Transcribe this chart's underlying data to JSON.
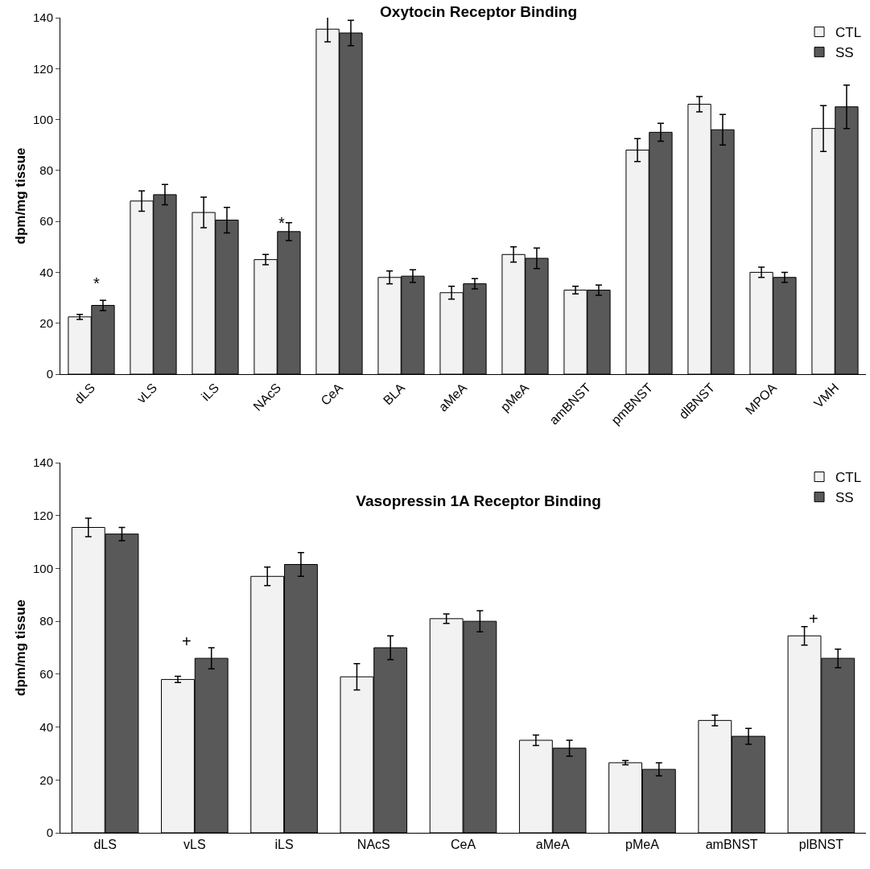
{
  "chart_data": [
    {
      "type": "bar",
      "title": "Oxytocin Receptor Binding",
      "ylabel": "dpm/mg tissue",
      "categories": [
        "dLS",
        "vLS",
        "iLS",
        "NAcS",
        "CeA",
        "BLA",
        "aMeA",
        "pMeA",
        "amBNST",
        "pmBNST",
        "dlBNST",
        "MPOA",
        "VMH"
      ],
      "series": [
        {
          "name": "CTL",
          "color": "#f2f2f2",
          "values": [
            22.5,
            68,
            63.5,
            45,
            135.5,
            38,
            32,
            47,
            33,
            88,
            106,
            40,
            96.5
          ],
          "errors": [
            1,
            4,
            6,
            2,
            5,
            2.5,
            2.5,
            3,
            1.5,
            4.5,
            3,
            2,
            9
          ]
        },
        {
          "name": "SS",
          "color": "#595959",
          "values": [
            27,
            70.5,
            60.5,
            56,
            134,
            38.5,
            35.5,
            45.5,
            33,
            95,
            96,
            38,
            105
          ],
          "errors": [
            2,
            4,
            5,
            3.5,
            5,
            2.5,
            2,
            4,
            2,
            3.5,
            6,
            2,
            8.5
          ]
        }
      ],
      "ylim": [
        0,
        140
      ],
      "yticks": [
        0,
        20,
        40,
        60,
        80,
        100,
        120,
        140
      ],
      "grid": false,
      "legend": "top right",
      "annotations": [
        "*",
        "*"
      ]
    },
    {
      "type": "bar",
      "title": "Vasopressin 1A Receptor Binding",
      "ylabel": "dpm/mg tissue",
      "categories": [
        "dLS",
        "vLS",
        "iLS",
        "NAcS",
        "CeA",
        "aMeA",
        "pMeA",
        "amBNST",
        "plBNST"
      ],
      "series": [
        {
          "name": "CTL",
          "color": "#f2f2f2",
          "values": [
            115.5,
            58,
            97,
            59,
            81,
            35,
            26.5,
            42.5,
            74.5
          ],
          "errors": [
            3.5,
            1.2,
            3.5,
            5,
            1.8,
            2,
            0.8,
            2,
            3.5
          ]
        },
        {
          "name": "SS",
          "color": "#595959",
          "values": [
            113,
            66,
            101.5,
            70,
            80,
            32,
            24,
            36.5,
            66
          ],
          "errors": [
            2.5,
            4,
            4.5,
            4.5,
            4,
            3,
            2.5,
            3,
            3.5
          ]
        }
      ],
      "ylim": [
        0,
        140
      ],
      "yticks": [
        0,
        20,
        40,
        60,
        80,
        100,
        120,
        140
      ],
      "grid": false,
      "legend": "top right",
      "annotations": [
        "+",
        "+"
      ]
    }
  ]
}
